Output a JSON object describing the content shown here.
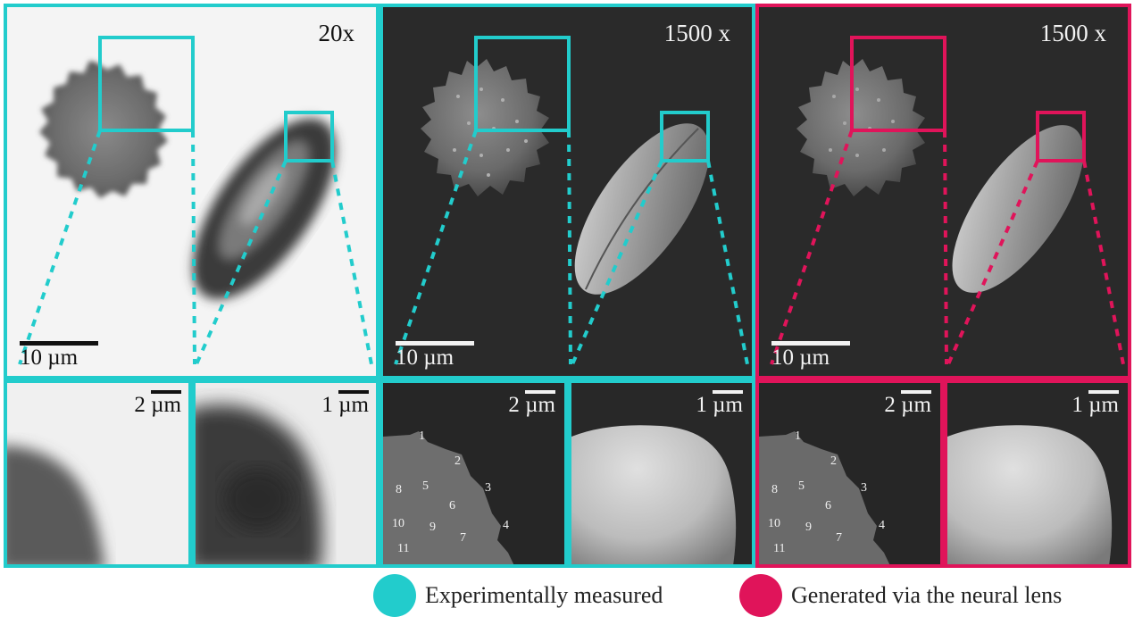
{
  "colors": {
    "experimental": "#22cccc",
    "generated": "#e0145a",
    "light_bg": "#f4f4f4",
    "dark_bg": "#2a2a2a"
  },
  "top_panels": [
    {
      "magnification": "20x",
      "scale_label": "10 µm"
    },
    {
      "magnification": "1500 x",
      "scale_label": "10 µm"
    },
    {
      "magnification": "1500 x",
      "scale_label": "10 µm"
    }
  ],
  "bottom_panels": [
    {
      "scale_label": "2 µm"
    },
    {
      "scale_label": "1 µm"
    },
    {
      "scale_label": "2 µm"
    },
    {
      "scale_label": "1 µm"
    },
    {
      "scale_label": "2 µm"
    },
    {
      "scale_label": "1 µm"
    }
  ],
  "spike_numbers": [
    "1",
    "2",
    "3",
    "4",
    "5",
    "6",
    "7",
    "8",
    "9",
    "10",
    "11"
  ],
  "legend": {
    "experimental": "Experimentally measured",
    "generated": "Generated via the neural lens"
  }
}
